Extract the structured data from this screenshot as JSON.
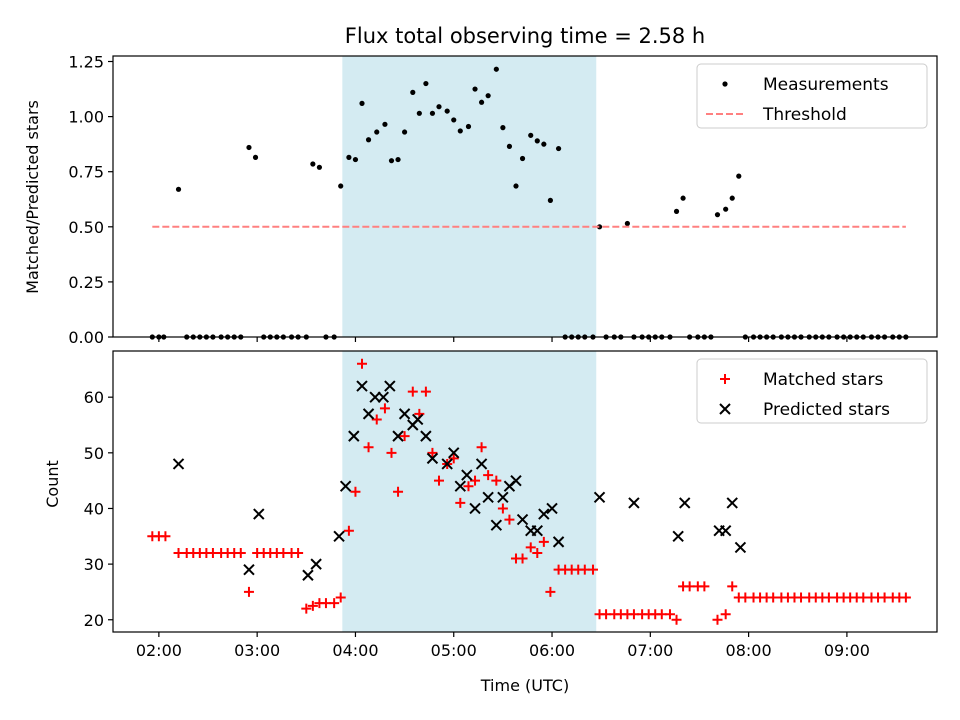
{
  "figure": {
    "title": "Flux total observing time = 2.58 h"
  },
  "chart_data": [
    {
      "type": "scatter",
      "panel": "top",
      "title": "Flux total observing time = 2.58 h",
      "xlabel": "",
      "ylabel": "Matched/Predicted stars",
      "xlim": [
        "01:32",
        "09:55"
      ],
      "ylim": [
        0.0,
        1.275
      ],
      "yticks": [
        "0.00",
        "0.25",
        "0.50",
        "0.75",
        "1.00",
        "1.25"
      ],
      "legend_position": "top-right",
      "shaded_span": {
        "from": "03:52",
        "to": "06:27",
        "color": "#add8e6"
      },
      "series": [
        {
          "name": "Measurements",
          "marker": "dot",
          "color": "#000000",
          "points": [
            [
              "01:56",
              0
            ],
            [
              "02:00",
              0
            ],
            [
              "02:03",
              0
            ],
            [
              "02:12",
              0.67
            ],
            [
              "02:17",
              0
            ],
            [
              "02:21",
              0
            ],
            [
              "02:25",
              0
            ],
            [
              "02:29",
              0
            ],
            [
              "02:33",
              0
            ],
            [
              "02:38",
              0
            ],
            [
              "02:42",
              0
            ],
            [
              "02:46",
              0
            ],
            [
              "02:50",
              0
            ],
            [
              "02:55",
              0.86
            ],
            [
              "02:59",
              0.815
            ],
            [
              "03:04",
              0
            ],
            [
              "03:08",
              0
            ],
            [
              "03:12",
              0
            ],
            [
              "03:16",
              0
            ],
            [
              "03:21",
              0
            ],
            [
              "03:25",
              0
            ],
            [
              "03:30",
              0
            ],
            [
              "03:34",
              0.785
            ],
            [
              "03:38",
              0.77
            ],
            [
              "03:42",
              0
            ],
            [
              "03:47",
              0
            ],
            [
              "03:51",
              0.685
            ],
            [
              "03:56",
              0.815
            ],
            [
              "04:00",
              0.805
            ],
            [
              "04:04",
              1.06
            ],
            [
              "04:08",
              0.895
            ],
            [
              "04:13",
              0.93
            ],
            [
              "04:18",
              0.965
            ],
            [
              "04:22",
              0.8
            ],
            [
              "04:26",
              0.805
            ],
            [
              "04:30",
              0.93
            ],
            [
              "04:35",
              1.11
            ],
            [
              "04:39",
              1.015
            ],
            [
              "04:43",
              1.15
            ],
            [
              "04:47",
              1.015
            ],
            [
              "04:51",
              1.045
            ],
            [
              "04:56",
              1.025
            ],
            [
              "05:00",
              0.985
            ],
            [
              "05:04",
              0.935
            ],
            [
              "05:09",
              0.955
            ],
            [
              "05:13",
              1.125
            ],
            [
              "05:17",
              1.065
            ],
            [
              "05:21",
              1.095
            ],
            [
              "05:26",
              1.215
            ],
            [
              "05:30",
              0.95
            ],
            [
              "05:34",
              0.865
            ],
            [
              "05:38",
              0.685
            ],
            [
              "05:42",
              0.81
            ],
            [
              "05:47",
              0.915
            ],
            [
              "05:51",
              0.89
            ],
            [
              "05:55",
              0.875
            ],
            [
              "05:59",
              0.62
            ],
            [
              "06:04",
              0.855
            ],
            [
              "06:08",
              0
            ],
            [
              "06:12",
              0
            ],
            [
              "06:16",
              0
            ],
            [
              "06:20",
              0
            ],
            [
              "06:25",
              0
            ],
            [
              "06:29",
              0.5
            ],
            [
              "06:33",
              0
            ],
            [
              "06:38",
              0
            ],
            [
              "06:42",
              0
            ],
            [
              "06:46",
              0.515
            ],
            [
              "06:50",
              0
            ],
            [
              "06:55",
              0
            ],
            [
              "06:59",
              0
            ],
            [
              "07:03",
              0
            ],
            [
              "07:07",
              0
            ],
            [
              "07:12",
              0
            ],
            [
              "07:16",
              0.57
            ],
            [
              "07:20",
              0.63
            ],
            [
              "07:24",
              0
            ],
            [
              "07:29",
              0
            ],
            [
              "07:33",
              0
            ],
            [
              "07:37",
              0
            ],
            [
              "07:41",
              0.555
            ],
            [
              "07:46",
              0.58
            ],
            [
              "07:50",
              0.63
            ],
            [
              "07:54",
              0.73
            ],
            [
              "07:58",
              0
            ],
            [
              "08:03",
              0
            ],
            [
              "08:07",
              0
            ],
            [
              "08:11",
              0
            ],
            [
              "08:15",
              0
            ],
            [
              "08:20",
              0
            ],
            [
              "08:24",
              0
            ],
            [
              "08:28",
              0
            ],
            [
              "08:32",
              0
            ],
            [
              "08:37",
              0
            ],
            [
              "08:41",
              0
            ],
            [
              "08:45",
              0
            ],
            [
              "08:49",
              0
            ],
            [
              "08:54",
              0
            ],
            [
              "08:58",
              0
            ],
            [
              "09:02",
              0
            ],
            [
              "09:06",
              0
            ],
            [
              "09:10",
              0
            ],
            [
              "09:15",
              0
            ],
            [
              "09:19",
              0
            ],
            [
              "09:23",
              0
            ],
            [
              "09:28",
              0
            ],
            [
              "09:32",
              0
            ],
            [
              "09:36",
              0
            ]
          ]
        },
        {
          "name": "Threshold",
          "style": "dashed-line",
          "color": "#ff8080",
          "points": [
            [
              "01:56",
              0.5
            ],
            [
              "09:36",
              0.5
            ]
          ]
        }
      ]
    },
    {
      "type": "scatter",
      "panel": "bottom",
      "xlabel": "Time (UTC)",
      "ylabel": "Count",
      "xlim": [
        "01:32",
        "09:55"
      ],
      "ylim": [
        17.8,
        68.3
      ],
      "xticks": [
        "02:00",
        "03:00",
        "04:00",
        "05:00",
        "06:00",
        "07:00",
        "08:00",
        "09:00"
      ],
      "yticks": [
        "20",
        "30",
        "40",
        "50",
        "60"
      ],
      "legend_position": "top-right",
      "shaded_span": {
        "from": "03:52",
        "to": "06:27",
        "color": "#add8e6"
      },
      "series": [
        {
          "name": "Matched stars",
          "marker": "plus",
          "color": "#ff0000",
          "points": [
            [
              "01:56",
              35
            ],
            [
              "02:00",
              35
            ],
            [
              "02:04",
              35
            ],
            [
              "02:12",
              32
            ],
            [
              "02:17",
              32
            ],
            [
              "02:21",
              32
            ],
            [
              "02:25",
              32
            ],
            [
              "02:29",
              32
            ],
            [
              "02:33",
              32
            ],
            [
              "02:38",
              32
            ],
            [
              "02:42",
              32
            ],
            [
              "02:46",
              32
            ],
            [
              "02:50",
              32
            ],
            [
              "02:55",
              25
            ],
            [
              "03:00",
              32
            ],
            [
              "03:04",
              32
            ],
            [
              "03:08",
              32
            ],
            [
              "03:12",
              32
            ],
            [
              "03:16",
              32
            ],
            [
              "03:21",
              32
            ],
            [
              "03:25",
              32
            ],
            [
              "03:30",
              22
            ],
            [
              "03:34",
              22.5
            ],
            [
              "03:38",
              23
            ],
            [
              "03:42",
              23
            ],
            [
              "03:47",
              23
            ],
            [
              "03:51",
              24
            ],
            [
              "03:56",
              36
            ],
            [
              "04:00",
              43
            ],
            [
              "04:04",
              66
            ],
            [
              "04:08",
              51
            ],
            [
              "04:13",
              56
            ],
            [
              "04:18",
              58
            ],
            [
              "04:22",
              50
            ],
            [
              "04:26",
              43
            ],
            [
              "04:30",
              53
            ],
            [
              "04:35",
              61
            ],
            [
              "04:39",
              57
            ],
            [
              "04:43",
              61
            ],
            [
              "04:47",
              50
            ],
            [
              "04:51",
              45
            ],
            [
              "04:56",
              48
            ],
            [
              "05:00",
              49
            ],
            [
              "05:04",
              41
            ],
            [
              "05:09",
              44
            ],
            [
              "05:13",
              45
            ],
            [
              "05:17",
              51
            ],
            [
              "05:21",
              46
            ],
            [
              "05:26",
              45
            ],
            [
              "05:30",
              40
            ],
            [
              "05:34",
              38
            ],
            [
              "05:38",
              31
            ],
            [
              "05:42",
              31
            ],
            [
              "05:47",
              33
            ],
            [
              "05:51",
              32
            ],
            [
              "05:55",
              34
            ],
            [
              "05:59",
              25
            ],
            [
              "06:04",
              29
            ],
            [
              "06:08",
              29
            ],
            [
              "06:12",
              29
            ],
            [
              "06:16",
              29
            ],
            [
              "06:20",
              29
            ],
            [
              "06:25",
              29
            ],
            [
              "06:29",
              21
            ],
            [
              "06:33",
              21
            ],
            [
              "06:38",
              21
            ],
            [
              "06:42",
              21
            ],
            [
              "06:46",
              21
            ],
            [
              "06:50",
              21
            ],
            [
              "06:55",
              21
            ],
            [
              "06:59",
              21
            ],
            [
              "07:03",
              21
            ],
            [
              "07:07",
              21
            ],
            [
              "07:12",
              21
            ],
            [
              "07:16",
              20
            ],
            [
              "07:20",
              26
            ],
            [
              "07:24",
              26
            ],
            [
              "07:29",
              26
            ],
            [
              "07:33",
              26
            ],
            [
              "07:41",
              20
            ],
            [
              "07:46",
              21
            ],
            [
              "07:50",
              26
            ],
            [
              "07:54",
              24
            ],
            [
              "07:58",
              24
            ],
            [
              "08:03",
              24
            ],
            [
              "08:07",
              24
            ],
            [
              "08:11",
              24
            ],
            [
              "08:15",
              24
            ],
            [
              "08:20",
              24
            ],
            [
              "08:24",
              24
            ],
            [
              "08:28",
              24
            ],
            [
              "08:32",
              24
            ],
            [
              "08:37",
              24
            ],
            [
              "08:41",
              24
            ],
            [
              "08:45",
              24
            ],
            [
              "08:49",
              24
            ],
            [
              "08:54",
              24
            ],
            [
              "08:58",
              24
            ],
            [
              "09:02",
              24
            ],
            [
              "09:06",
              24
            ],
            [
              "09:10",
              24
            ],
            [
              "09:15",
              24
            ],
            [
              "09:19",
              24
            ],
            [
              "09:23",
              24
            ],
            [
              "09:28",
              24
            ],
            [
              "09:32",
              24
            ],
            [
              "09:36",
              24
            ]
          ]
        },
        {
          "name": "Predicted stars",
          "marker": "cross",
          "color": "#000000",
          "points": [
            [
              "02:12",
              48
            ],
            [
              "02:55",
              29
            ],
            [
              "03:01",
              39
            ],
            [
              "03:31",
              28
            ],
            [
              "03:36",
              30
            ],
            [
              "03:50",
              35
            ],
            [
              "03:54",
              44
            ],
            [
              "03:59",
              53
            ],
            [
              "04:04",
              62
            ],
            [
              "04:08",
              57
            ],
            [
              "04:12",
              60
            ],
            [
              "04:17",
              60
            ],
            [
              "04:21",
              62
            ],
            [
              "04:26",
              53
            ],
            [
              "04:30",
              57
            ],
            [
              "04:35",
              55
            ],
            [
              "04:38",
              56
            ],
            [
              "04:43",
              53
            ],
            [
              "04:47",
              49
            ],
            [
              "04:56",
              48
            ],
            [
              "05:00",
              50
            ],
            [
              "05:04",
              44
            ],
            [
              "05:08",
              46
            ],
            [
              "05:13",
              40
            ],
            [
              "05:17",
              48
            ],
            [
              "05:21",
              42
            ],
            [
              "05:26",
              37
            ],
            [
              "05:30",
              42
            ],
            [
              "05:34",
              44
            ],
            [
              "05:38",
              45
            ],
            [
              "05:42",
              38
            ],
            [
              "05:47",
              36
            ],
            [
              "05:51",
              36
            ],
            [
              "05:55",
              39
            ],
            [
              "06:00",
              40
            ],
            [
              "06:04",
              34
            ],
            [
              "06:29",
              42
            ],
            [
              "06:50",
              41
            ],
            [
              "07:17",
              35
            ],
            [
              "07:21",
              41
            ],
            [
              "07:42",
              36
            ],
            [
              "07:46",
              36
            ],
            [
              "07:50",
              41
            ],
            [
              "07:55",
              33
            ]
          ]
        }
      ]
    }
  ]
}
